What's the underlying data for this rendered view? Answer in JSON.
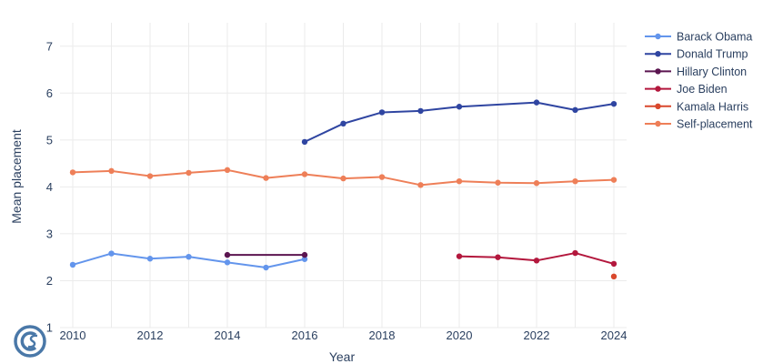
{
  "chart_data": {
    "type": "line",
    "xlabel": "Year",
    "ylabel": "Mean placement",
    "xlim": [
      2010,
      2024
    ],
    "ylim": [
      1,
      7.5
    ],
    "x_ticks": [
      2010,
      2012,
      2014,
      2016,
      2018,
      2020,
      2022,
      2024
    ],
    "y_ticks": [
      1,
      2,
      3,
      4,
      5,
      6,
      7
    ],
    "grid": true,
    "legend_position": "top-right",
    "series": [
      {
        "name": "Barack Obama",
        "color": "#6395ec",
        "x": [
          2010,
          2011,
          2012,
          2013,
          2014,
          2015,
          2016
        ],
        "y": [
          2.34,
          2.58,
          2.47,
          2.51,
          2.39,
          2.28,
          2.46
        ]
      },
      {
        "name": "Donald Trump",
        "color": "#2f45a1",
        "x": [
          2016,
          2017,
          2018,
          2019,
          2020,
          2022,
          2023,
          2024
        ],
        "y": [
          4.96,
          5.35,
          5.59,
          5.62,
          5.71,
          5.8,
          5.64,
          5.77
        ]
      },
      {
        "name": "Hillary Clinton",
        "color": "#5b1550",
        "x": [
          2014,
          2016
        ],
        "y": [
          2.55,
          2.55
        ]
      },
      {
        "name": "Joe Biden",
        "color": "#b3173d",
        "x": [
          2020,
          2021,
          2022,
          2023,
          2024
        ],
        "y": [
          2.52,
          2.5,
          2.43,
          2.59,
          2.36
        ]
      },
      {
        "name": "Kamala Harris",
        "color": "#d9482d",
        "x": [
          2024
        ],
        "y": [
          2.09
        ]
      },
      {
        "name": "Self-placement",
        "color": "#ee7f58",
        "x": [
          2010,
          2011,
          2012,
          2013,
          2014,
          2015,
          2016,
          2017,
          2018,
          2019,
          2020,
          2021,
          2022,
          2023,
          2024
        ],
        "y": [
          4.31,
          4.34,
          4.23,
          4.3,
          4.36,
          4.19,
          4.27,
          4.18,
          4.21,
          4.04,
          4.12,
          4.09,
          4.08,
          4.12,
          4.15
        ]
      }
    ]
  },
  "logo": {
    "name": "ces-logo-icon",
    "color": "#4a78a8"
  }
}
